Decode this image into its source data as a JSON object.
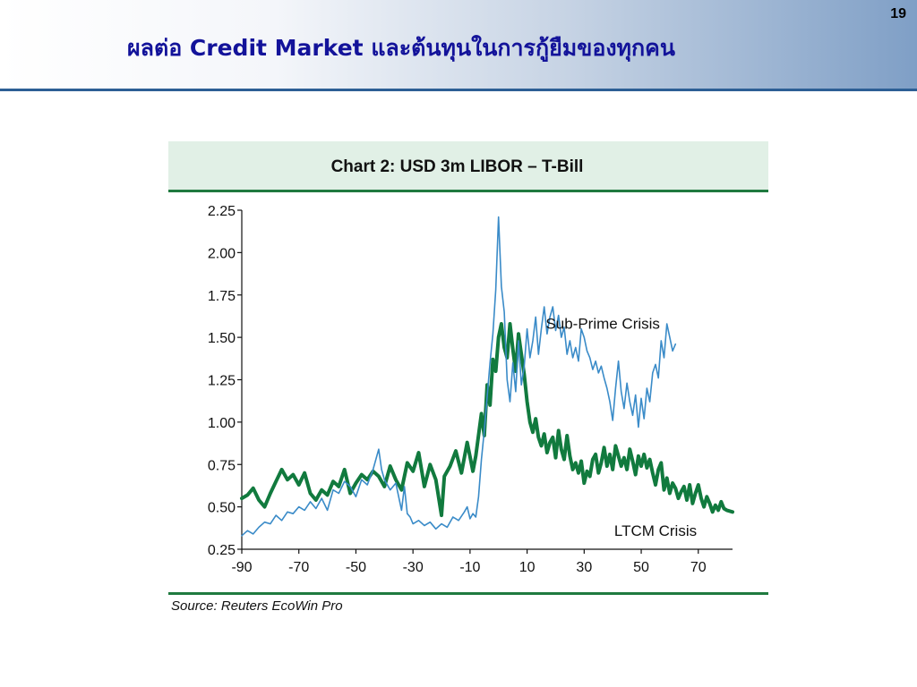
{
  "slide": {
    "number": "19",
    "title": "ผลต่อ Credit Market และต้นทุนในการกู้ยืมของทุกคน"
  },
  "chart_data": {
    "type": "line",
    "title": "Chart 2: USD 3m LIBOR – T-Bill",
    "source": "Source: Reuters EcoWin Pro",
    "xlabel": "",
    "ylabel": "",
    "xlim": [
      -90,
      82
    ],
    "ylim": [
      0.25,
      2.25
    ],
    "xticks": [
      -90,
      -70,
      -50,
      -30,
      -10,
      10,
      30,
      50,
      70
    ],
    "yticks": [
      "0.25",
      "0.50",
      "0.75",
      "1.00",
      "1.25",
      "1.50",
      "1.75",
      "2.00",
      "2.25"
    ],
    "grid": false,
    "legend": "none",
    "annotations": [
      {
        "text": "Sub-Prime Crisis",
        "series": "Sub-Prime Crisis"
      },
      {
        "text": "LTCM Crisis",
        "series": "LTCM Crisis"
      }
    ],
    "series": [
      {
        "name": "LTCM Crisis",
        "color": "#117a3e",
        "width": 4,
        "points": [
          [
            -90,
            0.55
          ],
          [
            -88,
            0.57
          ],
          [
            -86,
            0.61
          ],
          [
            -84,
            0.54
          ],
          [
            -82,
            0.5
          ],
          [
            -80,
            0.58
          ],
          [
            -78,
            0.65
          ],
          [
            -76,
            0.72
          ],
          [
            -74,
            0.66
          ],
          [
            -72,
            0.69
          ],
          [
            -70,
            0.63
          ],
          [
            -68,
            0.7
          ],
          [
            -66,
            0.58
          ],
          [
            -64,
            0.54
          ],
          [
            -62,
            0.6
          ],
          [
            -60,
            0.57
          ],
          [
            -58,
            0.65
          ],
          [
            -56,
            0.62
          ],
          [
            -54,
            0.72
          ],
          [
            -52,
            0.58
          ],
          [
            -50,
            0.64
          ],
          [
            -48,
            0.69
          ],
          [
            -46,
            0.66
          ],
          [
            -44,
            0.71
          ],
          [
            -42,
            0.68
          ],
          [
            -40,
            0.62
          ],
          [
            -38,
            0.74
          ],
          [
            -36,
            0.66
          ],
          [
            -34,
            0.6
          ],
          [
            -32,
            0.76
          ],
          [
            -30,
            0.71
          ],
          [
            -28,
            0.82
          ],
          [
            -26,
            0.62
          ],
          [
            -24,
            0.75
          ],
          [
            -22,
            0.66
          ],
          [
            -20,
            0.45
          ],
          [
            -19,
            0.68
          ],
          [
            -17,
            0.74
          ],
          [
            -15,
            0.83
          ],
          [
            -13,
            0.7
          ],
          [
            -11,
            0.88
          ],
          [
            -9,
            0.71
          ],
          [
            -8,
            0.8
          ],
          [
            -6,
            1.05
          ],
          [
            -5,
            0.92
          ],
          [
            -4,
            1.22
          ],
          [
            -3,
            1.1
          ],
          [
            -2,
            1.37
          ],
          [
            -1,
            1.3
          ],
          [
            0,
            1.5
          ],
          [
            1,
            1.58
          ],
          [
            2,
            1.44
          ],
          [
            3,
            1.38
          ],
          [
            4,
            1.58
          ],
          [
            5,
            1.43
          ],
          [
            6,
            1.3
          ],
          [
            7,
            1.52
          ],
          [
            8,
            1.4
          ],
          [
            9,
            1.28
          ],
          [
            10,
            1.12
          ],
          [
            11,
            1.0
          ],
          [
            12,
            0.94
          ],
          [
            13,
            1.02
          ],
          [
            14,
            0.91
          ],
          [
            15,
            0.86
          ],
          [
            16,
            0.93
          ],
          [
            17,
            0.82
          ],
          [
            18,
            0.88
          ],
          [
            19,
            0.91
          ],
          [
            20,
            0.79
          ],
          [
            21,
            0.95
          ],
          [
            22,
            0.84
          ],
          [
            23,
            0.78
          ],
          [
            24,
            0.92
          ],
          [
            25,
            0.8
          ],
          [
            26,
            0.72
          ],
          [
            27,
            0.76
          ],
          [
            28,
            0.7
          ],
          [
            29,
            0.77
          ],
          [
            30,
            0.64
          ],
          [
            31,
            0.71
          ],
          [
            32,
            0.68
          ],
          [
            33,
            0.78
          ],
          [
            34,
            0.81
          ],
          [
            35,
            0.7
          ],
          [
            36,
            0.76
          ],
          [
            37,
            0.85
          ],
          [
            38,
            0.74
          ],
          [
            39,
            0.81
          ],
          [
            40,
            0.72
          ],
          [
            41,
            0.86
          ],
          [
            42,
            0.8
          ],
          [
            43,
            0.74
          ],
          [
            44,
            0.79
          ],
          [
            45,
            0.72
          ],
          [
            46,
            0.84
          ],
          [
            47,
            0.77
          ],
          [
            48,
            0.69
          ],
          [
            49,
            0.8
          ],
          [
            50,
            0.74
          ],
          [
            51,
            0.81
          ],
          [
            52,
            0.73
          ],
          [
            53,
            0.78
          ],
          [
            54,
            0.7
          ],
          [
            55,
            0.63
          ],
          [
            56,
            0.72
          ],
          [
            57,
            0.76
          ],
          [
            58,
            0.6
          ],
          [
            59,
            0.67
          ],
          [
            60,
            0.58
          ],
          [
            61,
            0.64
          ],
          [
            62,
            0.61
          ],
          [
            63,
            0.55
          ],
          [
            64,
            0.59
          ],
          [
            65,
            0.62
          ],
          [
            66,
            0.54
          ],
          [
            67,
            0.63
          ],
          [
            68,
            0.52
          ],
          [
            69,
            0.58
          ],
          [
            70,
            0.63
          ],
          [
            71,
            0.55
          ],
          [
            72,
            0.5
          ],
          [
            73,
            0.56
          ],
          [
            74,
            0.52
          ],
          [
            75,
            0.47
          ],
          [
            76,
            0.51
          ],
          [
            77,
            0.48
          ],
          [
            78,
            0.53
          ],
          [
            79,
            0.49
          ],
          [
            80,
            0.48
          ],
          [
            82,
            0.47
          ]
        ]
      },
      {
        "name": "Sub-Prime Crisis",
        "color": "#3a8bc8",
        "width": 1.6,
        "points": [
          [
            -90,
            0.33
          ],
          [
            -88,
            0.36
          ],
          [
            -86,
            0.34
          ],
          [
            -84,
            0.38
          ],
          [
            -82,
            0.41
          ],
          [
            -80,
            0.4
          ],
          [
            -78,
            0.45
          ],
          [
            -76,
            0.42
          ],
          [
            -74,
            0.47
          ],
          [
            -72,
            0.46
          ],
          [
            -70,
            0.5
          ],
          [
            -68,
            0.48
          ],
          [
            -66,
            0.53
          ],
          [
            -64,
            0.49
          ],
          [
            -62,
            0.55
          ],
          [
            -60,
            0.48
          ],
          [
            -58,
            0.6
          ],
          [
            -56,
            0.58
          ],
          [
            -54,
            0.65
          ],
          [
            -52,
            0.62
          ],
          [
            -50,
            0.56
          ],
          [
            -48,
            0.66
          ],
          [
            -46,
            0.63
          ],
          [
            -44,
            0.72
          ],
          [
            -42,
            0.84
          ],
          [
            -41,
            0.72
          ],
          [
            -40,
            0.66
          ],
          [
            -38,
            0.6
          ],
          [
            -36,
            0.64
          ],
          [
            -35,
            0.56
          ],
          [
            -34,
            0.48
          ],
          [
            -33,
            0.62
          ],
          [
            -32,
            0.46
          ],
          [
            -31,
            0.44
          ],
          [
            -30,
            0.4
          ],
          [
            -28,
            0.42
          ],
          [
            -26,
            0.39
          ],
          [
            -24,
            0.41
          ],
          [
            -22,
            0.37
          ],
          [
            -20,
            0.4
          ],
          [
            -18,
            0.38
          ],
          [
            -16,
            0.44
          ],
          [
            -14,
            0.42
          ],
          [
            -12,
            0.47
          ],
          [
            -11,
            0.5
          ],
          [
            -10,
            0.43
          ],
          [
            -9,
            0.46
          ],
          [
            -8,
            0.44
          ],
          [
            -7,
            0.56
          ],
          [
            -6,
            0.78
          ],
          [
            -5,
            0.95
          ],
          [
            -4,
            1.15
          ],
          [
            -3,
            1.35
          ],
          [
            -2,
            1.52
          ],
          [
            -1,
            1.78
          ],
          [
            0,
            2.21
          ],
          [
            1,
            1.8
          ],
          [
            2,
            1.65
          ],
          [
            3,
            1.25
          ],
          [
            4,
            1.12
          ],
          [
            5,
            1.35
          ],
          [
            6,
            1.18
          ],
          [
            7,
            1.48
          ],
          [
            8,
            1.22
          ],
          [
            9,
            1.33
          ],
          [
            10,
            1.55
          ],
          [
            11,
            1.38
          ],
          [
            12,
            1.48
          ],
          [
            13,
            1.62
          ],
          [
            14,
            1.4
          ],
          [
            15,
            1.55
          ],
          [
            16,
            1.68
          ],
          [
            17,
            1.52
          ],
          [
            18,
            1.62
          ],
          [
            19,
            1.68
          ],
          [
            20,
            1.54
          ],
          [
            21,
            1.63
          ],
          [
            22,
            1.5
          ],
          [
            23,
            1.56
          ],
          [
            24,
            1.4
          ],
          [
            25,
            1.48
          ],
          [
            26,
            1.38
          ],
          [
            27,
            1.44
          ],
          [
            28,
            1.36
          ],
          [
            29,
            1.55
          ],
          [
            30,
            1.5
          ],
          [
            31,
            1.42
          ],
          [
            32,
            1.38
          ],
          [
            33,
            1.31
          ],
          [
            34,
            1.36
          ],
          [
            35,
            1.29
          ],
          [
            36,
            1.33
          ],
          [
            37,
            1.26
          ],
          [
            38,
            1.2
          ],
          [
            39,
            1.12
          ],
          [
            40,
            1.01
          ],
          [
            41,
            1.2
          ],
          [
            42,
            1.36
          ],
          [
            43,
            1.18
          ],
          [
            44,
            1.08
          ],
          [
            45,
            1.23
          ],
          [
            46,
            1.12
          ],
          [
            47,
            1.04
          ],
          [
            48,
            1.16
          ],
          [
            49,
            0.97
          ],
          [
            50,
            1.14
          ],
          [
            51,
            1.02
          ],
          [
            52,
            1.2
          ],
          [
            53,
            1.12
          ],
          [
            54,
            1.29
          ],
          [
            55,
            1.34
          ],
          [
            56,
            1.26
          ],
          [
            57,
            1.48
          ],
          [
            58,
            1.38
          ],
          [
            59,
            1.58
          ],
          [
            60,
            1.5
          ],
          [
            61,
            1.42
          ],
          [
            62,
            1.46
          ]
        ]
      }
    ]
  }
}
